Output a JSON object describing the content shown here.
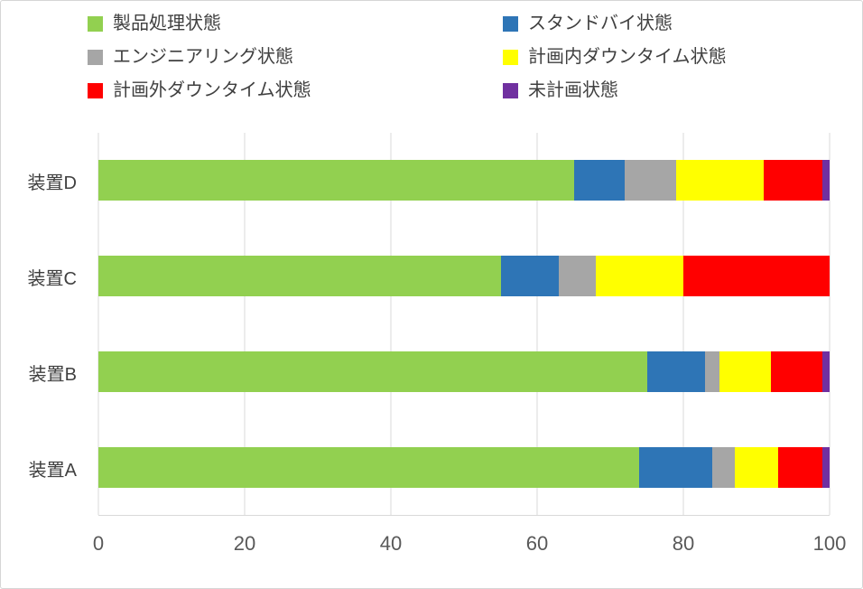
{
  "chart_data": {
    "type": "bar",
    "orientation": "horizontal",
    "stacked": true,
    "title": "",
    "xlabel": "",
    "ylabel": "",
    "categories": [
      "装置D",
      "装置C",
      "装置B",
      "装置A"
    ],
    "series": [
      {
        "name": "製品処理状態",
        "color": "#92D050",
        "values": [
          65,
          55,
          75,
          74
        ]
      },
      {
        "name": "スタンドバイ状態",
        "color": "#2E75B6",
        "values": [
          7,
          8,
          8,
          10
        ]
      },
      {
        "name": "エンジニアリング状態",
        "color": "#A6A6A6",
        "values": [
          7,
          5,
          2,
          3
        ]
      },
      {
        "name": "計画内ダウンタイム状態",
        "color": "#FFFF00",
        "values": [
          12,
          12,
          7,
          6
        ]
      },
      {
        "name": "計画外ダウンタイム状態",
        "color": "#FF0000",
        "values": [
          8,
          20,
          7,
          6
        ]
      },
      {
        "name": "未計画状態",
        "color": "#7030A0",
        "values": [
          1,
          0,
          1,
          1
        ]
      }
    ],
    "x_ticks": [
      0,
      20,
      40,
      60,
      80,
      100
    ],
    "xlim": [
      0,
      100
    ],
    "legend_position": "top",
    "grid": true
  },
  "colors": {
    "legend_text": "#404040",
    "category_text": "#404040",
    "axis_text": "#595959",
    "gridline": "#D9D9D9",
    "background": "#FFFFFF"
  }
}
